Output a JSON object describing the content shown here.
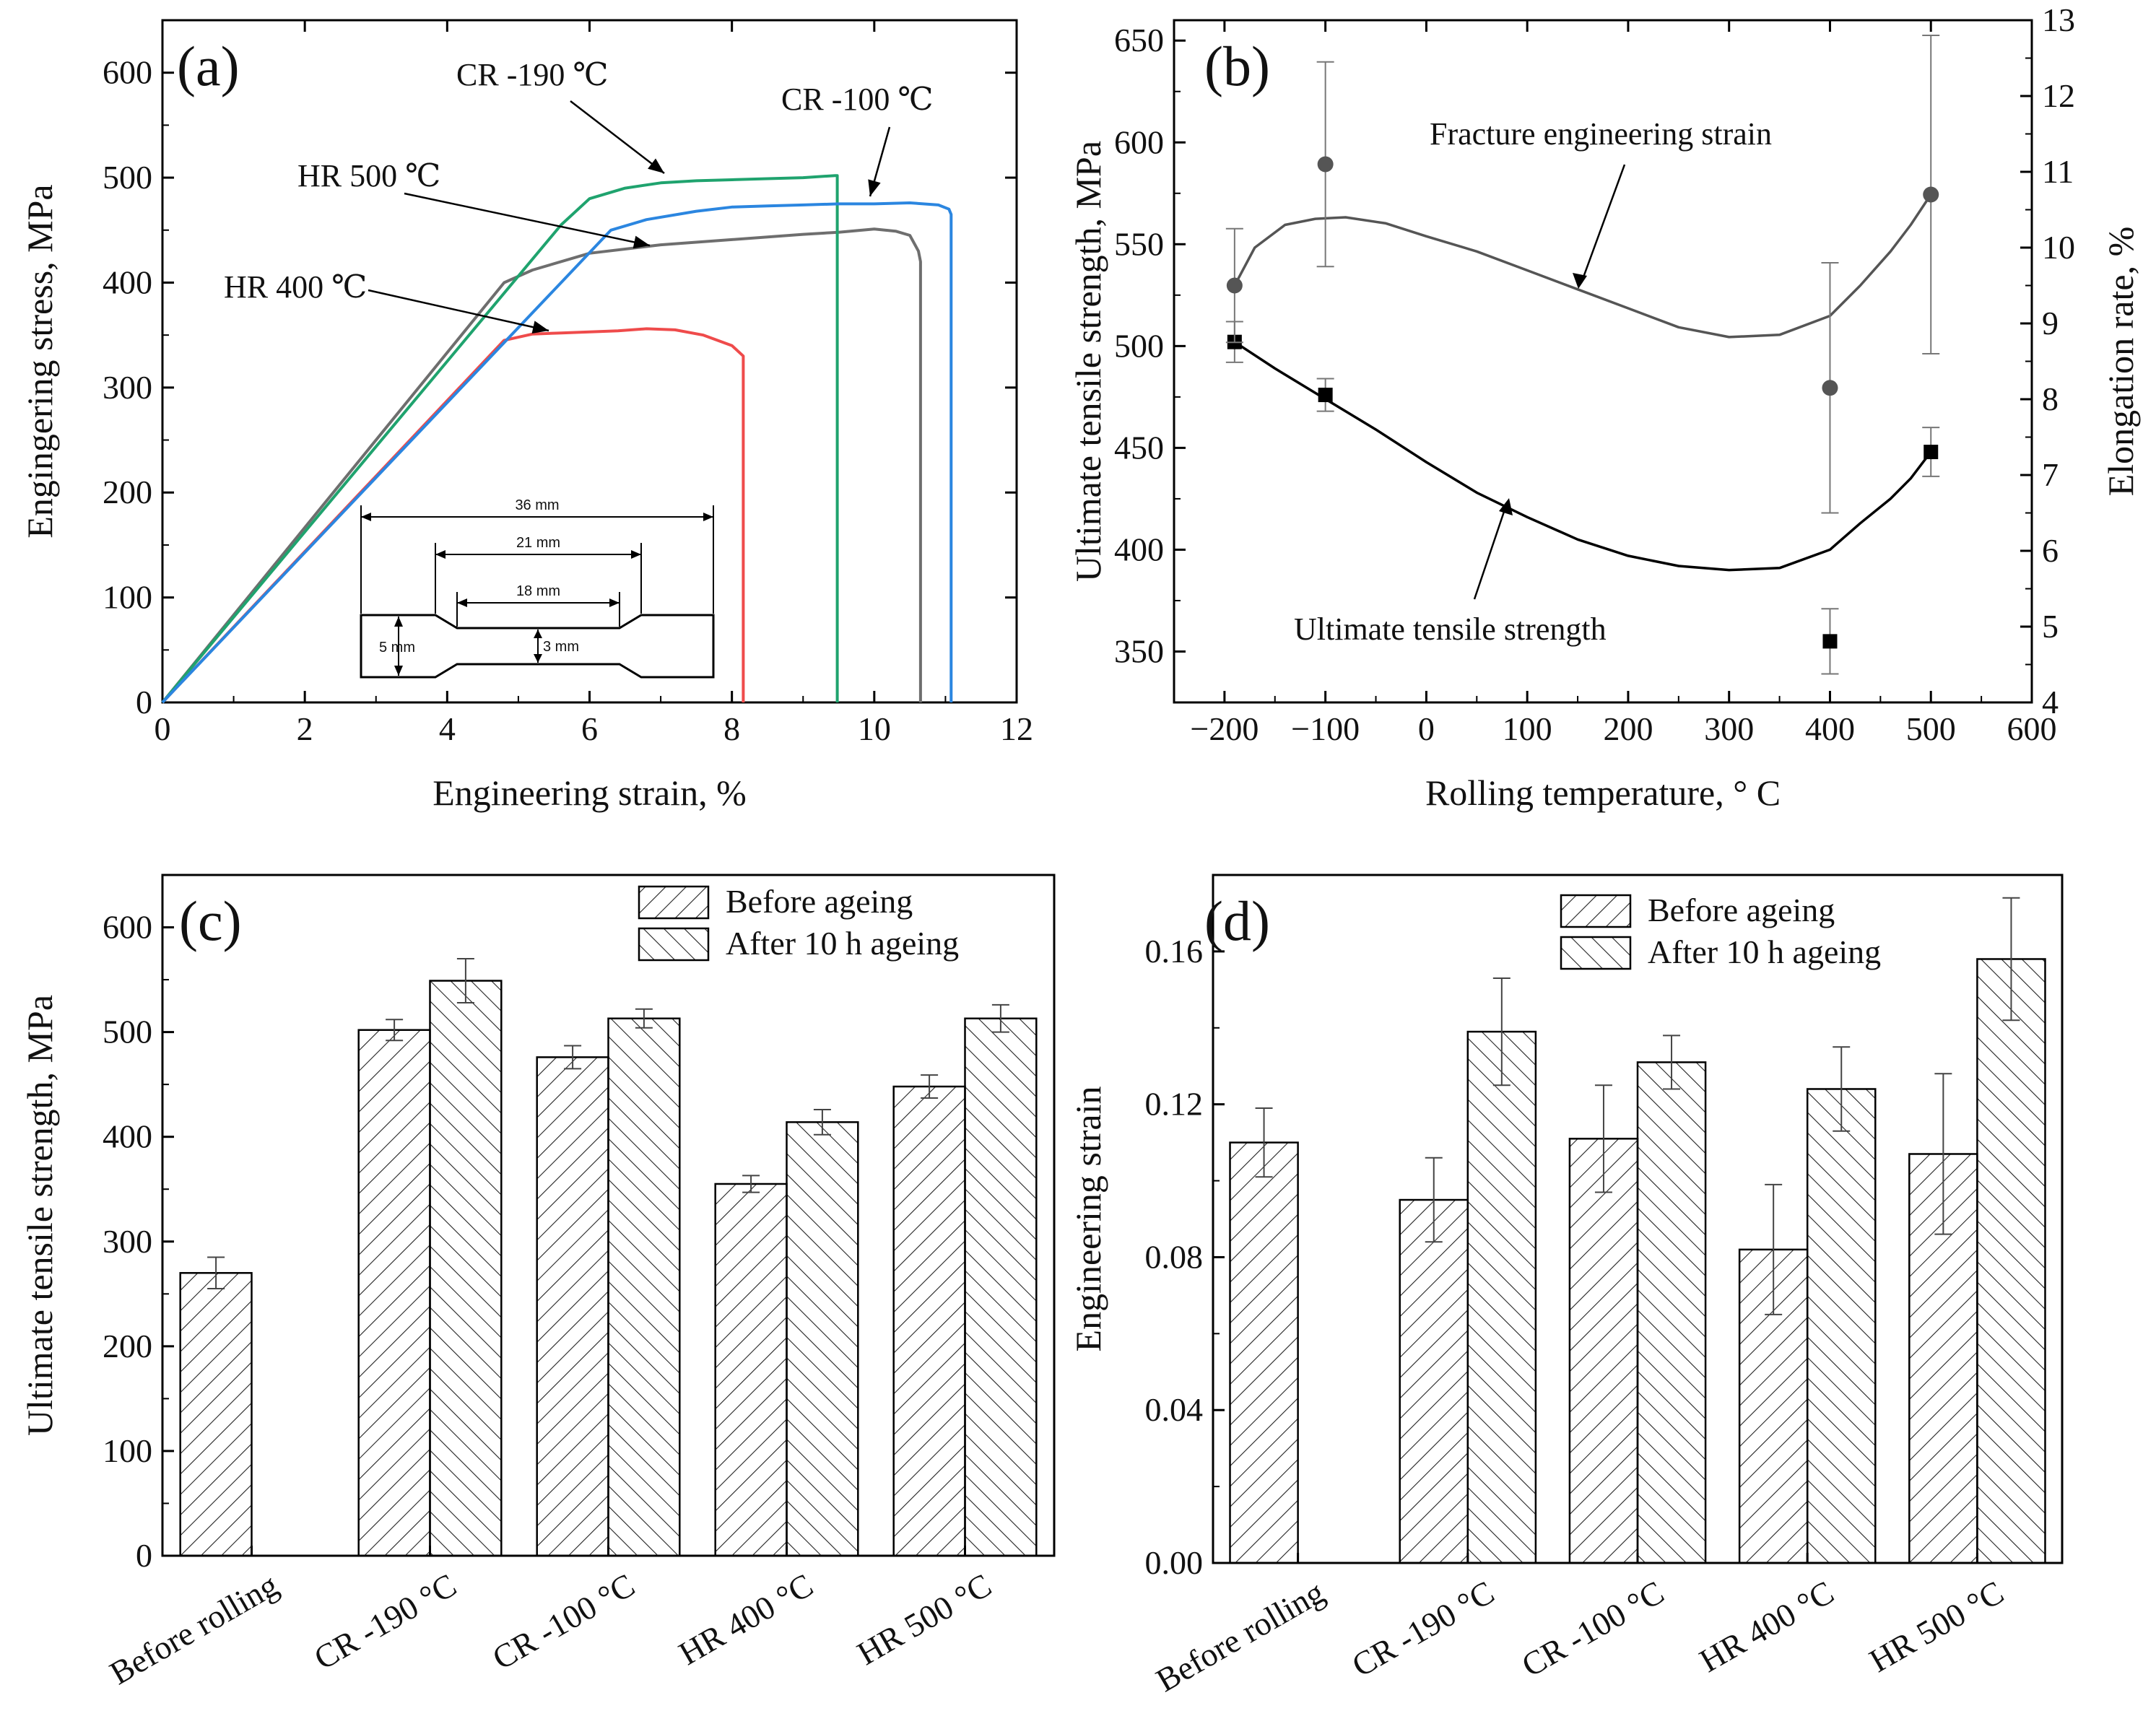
{
  "chart_data": [
    {
      "panel": "a",
      "panel_label": "(a)",
      "type": "line",
      "xlabel": "Engineering strain, %",
      "ylabel": "Engingering stress, MPa",
      "xlim": [
        0,
        12
      ],
      "ylim": [
        0,
        650
      ],
      "xticks": [
        0,
        2,
        4,
        6,
        8,
        10,
        12
      ],
      "yticks": [
        0,
        100,
        200,
        300,
        400,
        500,
        600
      ],
      "series": [
        {
          "name": "HR 400 ℃",
          "color": "#ef4b4b",
          "x": [
            0,
            4.8,
            5.2,
            5.6,
            6.0,
            6.4,
            6.8,
            7.2,
            7.6,
            8.0,
            8.16,
            8.16
          ],
          "y": [
            0,
            345,
            351,
            352,
            353,
            354,
            356,
            355,
            350,
            340,
            330,
            0
          ]
        },
        {
          "name": "HR 500 ℃",
          "color": "#6e6e6e",
          "x": [
            0,
            4.8,
            5.2,
            6.0,
            7.0,
            8.0,
            9.0,
            9.5,
            10.0,
            10.3,
            10.5,
            10.62,
            10.65,
            10.65
          ],
          "y": [
            0,
            400,
            412,
            428,
            436,
            441,
            446,
            448,
            451,
            449,
            445,
            430,
            420,
            0
          ]
        },
        {
          "name": "CR -190 ℃",
          "color": "#1fa36e",
          "x": [
            0,
            5.6,
            6.0,
            6.5,
            7.0,
            7.5,
            8.0,
            8.5,
            9.0,
            9.45,
            9.48,
            9.48
          ],
          "y": [
            0,
            455,
            480,
            490,
            495,
            497,
            498,
            499,
            500,
            502,
            502,
            0
          ]
        },
        {
          "name": "CR -100 ℃",
          "color": "#2b86e0",
          "x": [
            0,
            6.3,
            6.8,
            7.5,
            8.0,
            8.5,
            9.0,
            9.5,
            10.0,
            10.5,
            10.9,
            11.05,
            11.08,
            11.08
          ],
          "y": [
            0,
            450,
            460,
            468,
            472,
            473,
            474,
            475,
            475,
            476,
            474,
            470,
            465,
            0
          ]
        }
      ],
      "annotations": [
        "CR -190 ℃",
        "CR -100 ℃",
        "HR 500 ℃",
        "HR 400 ℃"
      ],
      "specimen_dimensions": [
        "36 mm",
        "21 mm",
        "18 mm",
        "5 mm",
        "3 mm"
      ]
    },
    {
      "panel": "b",
      "panel_label": "(b)",
      "type": "scatter",
      "xlabel": "Rolling temperature,  ° C",
      "ylabel": "Ultimate tensile strength, MPa",
      "y2label": "Elongation rate, %",
      "xlim": [
        -250,
        600
      ],
      "ylim": [
        325,
        660
      ],
      "y2lim": [
        4,
        13
      ],
      "xticks": [
        -200,
        -100,
        0,
        100,
        200,
        300,
        400,
        500,
        600
      ],
      "yticks": [
        350,
        400,
        450,
        500,
        550,
        600,
        650
      ],
      "y2ticks": [
        4,
        5,
        6,
        7,
        8,
        9,
        10,
        11,
        12,
        13
      ],
      "series": [
        {
          "name": "Ultimate tensile strength",
          "axis": "left",
          "marker": "square",
          "color": "#000000",
          "x": [
            -190,
            -100,
            400,
            500
          ],
          "y": [
            502,
            476,
            355,
            448
          ],
          "err": [
            10,
            8,
            16,
            12
          ],
          "fit_x": [
            -190,
            -150,
            -100,
            -50,
            0,
            50,
            100,
            150,
            200,
            250,
            300,
            350,
            400,
            430,
            460,
            480,
            500
          ],
          "fit_y": [
            502,
            489,
            474,
            459,
            443,
            428,
            416,
            405,
            397,
            392,
            390,
            391,
            400,
            413,
            425,
            435,
            448
          ]
        },
        {
          "name": "Fracture engineering strain",
          "axis": "right",
          "marker": "circle",
          "color": "#555555",
          "x": [
            -190,
            -100,
            400,
            500
          ],
          "y": [
            9.5,
            11.1,
            8.15,
            10.7
          ],
          "err": [
            0.75,
            1.35,
            1.65,
            2.1
          ],
          "fit_x": [
            -190,
            -170,
            -140,
            -110,
            -80,
            -40,
            0,
            50,
            100,
            150,
            200,
            250,
            300,
            350,
            400,
            430,
            460,
            480,
            500
          ],
          "fit_y": [
            9.5,
            10.0,
            10.3,
            10.38,
            10.4,
            10.32,
            10.15,
            9.95,
            9.7,
            9.45,
            9.2,
            8.95,
            8.82,
            8.85,
            9.1,
            9.5,
            9.95,
            10.3,
            10.7
          ]
        }
      ],
      "annotations": [
        "Fracture engineering strain",
        "Ultimate tensile strength"
      ]
    },
    {
      "panel": "c",
      "panel_label": "(c)",
      "type": "bar",
      "ylabel": "Ultimate tensile strength, MPa",
      "ylim": [
        0,
        650
      ],
      "yticks": [
        0,
        100,
        200,
        300,
        400,
        500,
        600
      ],
      "categories": [
        "Before rolling",
        "CR -190 °C",
        "CR -100 °C",
        "HR 400 °C",
        "HR 500 °C"
      ],
      "legend": [
        "Before ageing",
        "After 10 h ageing"
      ],
      "series": [
        {
          "name": "Before ageing",
          "values": [
            270,
            502,
            476,
            355,
            448
          ],
          "err": [
            15,
            10,
            11,
            8,
            11
          ]
        },
        {
          "name": "After 10 h ageing",
          "values": [
            null,
            549,
            513,
            414,
            513
          ],
          "err": [
            null,
            21,
            9,
            12,
            13
          ]
        }
      ]
    },
    {
      "panel": "d",
      "panel_label": "(d)",
      "type": "bar",
      "ylabel": "Engineering strain",
      "ylim": [
        0,
        0.18
      ],
      "yticks": [
        0.0,
        0.04,
        0.08,
        0.12,
        0.16
      ],
      "ytick_labels": [
        "0.00",
        "0.04",
        "0.08",
        "0.12",
        "0.16"
      ],
      "categories": [
        "Before rolling",
        "CR -190 °C",
        "CR -100 °C",
        "HR 400 °C",
        "HR 500 °C"
      ],
      "legend": [
        "Before ageing",
        "After 10 h ageing"
      ],
      "series": [
        {
          "name": "Before ageing",
          "values": [
            0.11,
            0.095,
            0.111,
            0.082,
            0.107
          ],
          "err": [
            0.009,
            0.011,
            0.014,
            0.017,
            0.021
          ]
        },
        {
          "name": "After 10 h ageing",
          "values": [
            null,
            0.139,
            0.131,
            0.124,
            0.158
          ],
          "err": [
            null,
            0.014,
            0.007,
            0.011,
            0.016
          ]
        }
      ]
    }
  ]
}
